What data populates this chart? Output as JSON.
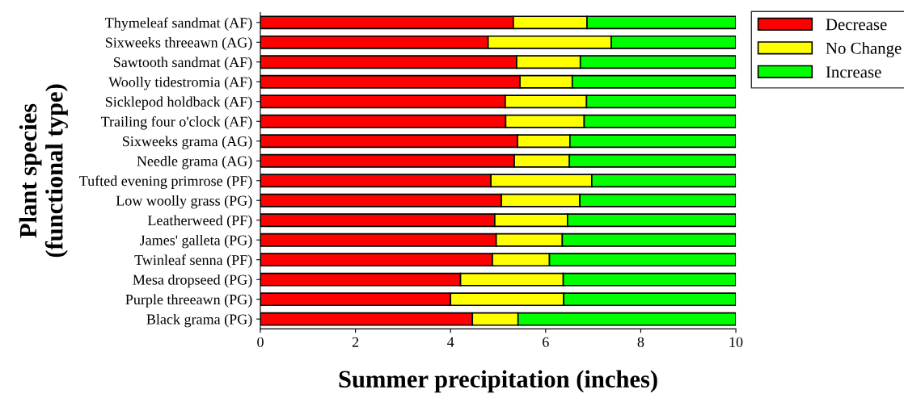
{
  "chart_data": {
    "type": "bar",
    "orientation": "horizontal",
    "stacked": true,
    "xlabel": "Summer precipitation (inches)",
    "ylabel": "Plant species\n(functional type)",
    "categories": [
      "Thymeleaf sandmat (AF)",
      "Sixweeks threeawn (AG)",
      "Sawtooth sandmat (AF)",
      "Woolly tidestromia (AF)",
      "Sicklepod holdback (AF)",
      "Trailing four o'clock (AF)",
      "Sixweeks grama (AG)",
      "Needle grama (AG)",
      "Tufted evening primrose (PF)",
      "Low woolly grass (PG)",
      "Leatherweed (PF)",
      "James' galleta (PG)",
      "Twinleaf senna (PF)",
      "Mesa dropseed (PG)",
      "Purple threeawn (PG)",
      "Black grama (PG)"
    ],
    "series": [
      {
        "name": "Decrease",
        "color": "#ff0000",
        "values": [
          5.32,
          4.79,
          5.39,
          5.46,
          5.15,
          5.16,
          5.41,
          5.34,
          4.85,
          5.07,
          4.93,
          4.96,
          4.88,
          4.21,
          4.0,
          4.46
        ]
      },
      {
        "name": "No Change",
        "color": "#ffff00",
        "values": [
          1.55,
          2.59,
          1.34,
          1.1,
          1.71,
          1.65,
          1.1,
          1.16,
          2.12,
          1.65,
          1.53,
          1.39,
          1.2,
          2.16,
          2.38,
          0.96
        ]
      },
      {
        "name": "Increase",
        "color": "#00ff00",
        "values": [
          3.13,
          2.62,
          3.27,
          3.44,
          3.14,
          3.19,
          3.49,
          3.5,
          3.03,
          3.28,
          3.54,
          3.65,
          3.92,
          3.63,
          3.62,
          4.58
        ]
      }
    ],
    "xlim": [
      0,
      10
    ],
    "xticks": [
      0,
      2,
      4,
      6,
      8,
      10
    ],
    "grid": false,
    "legend": "top right"
  }
}
